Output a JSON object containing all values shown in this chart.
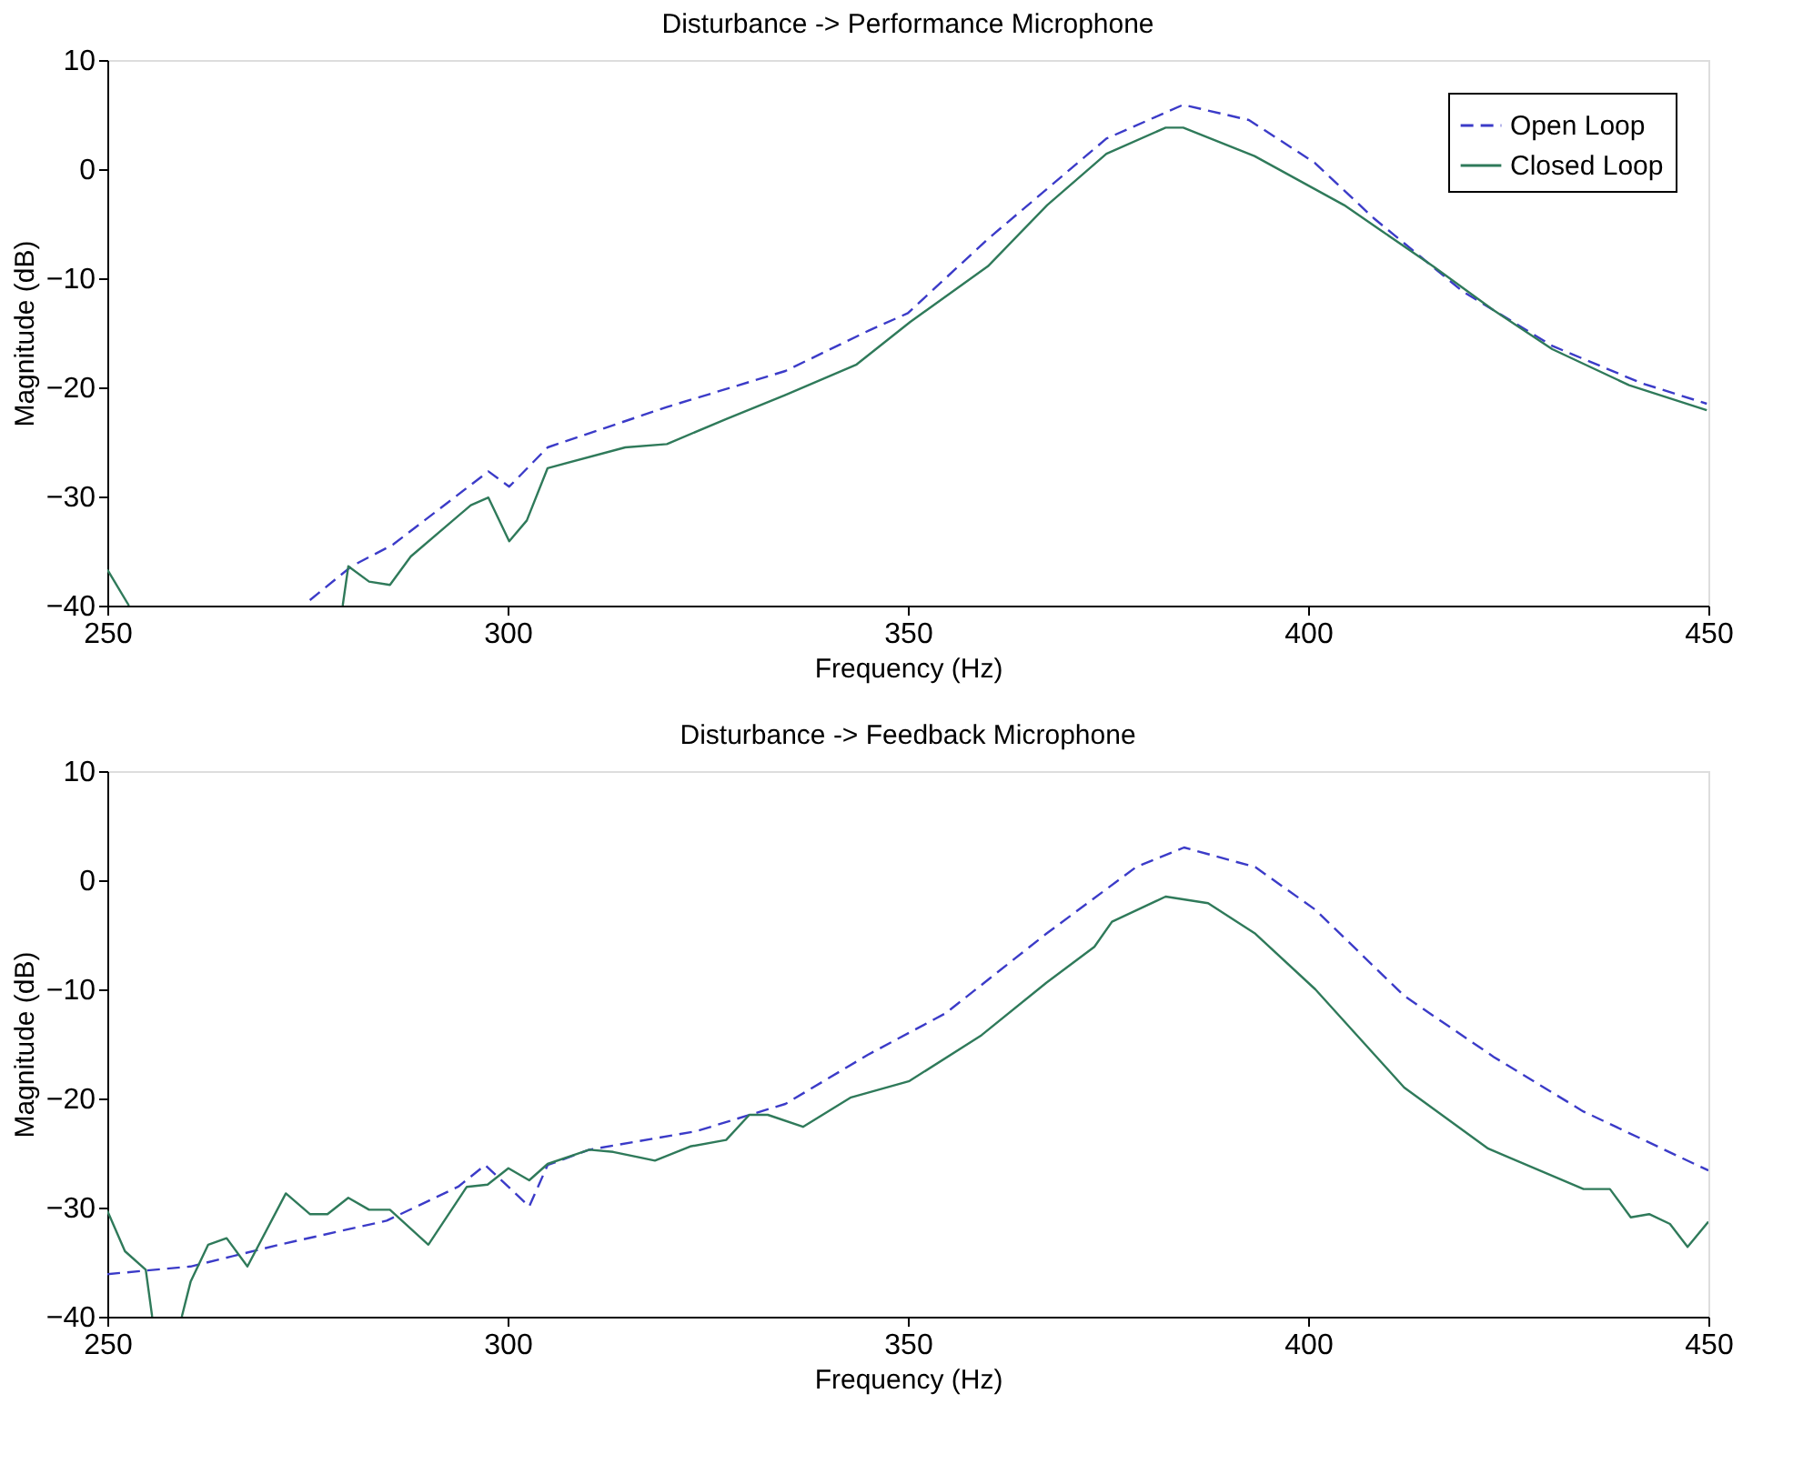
{
  "chart_data": [
    {
      "type": "line",
      "title": "Disturbance -> Performance Microphone",
      "xlabel": "Frequency (Hz)",
      "ylabel": "Magnitude (dB)",
      "xlim": [
        250,
        450
      ],
      "ylim": [
        -40,
        10
      ],
      "xticks": [
        250,
        300,
        350,
        400,
        450
      ],
      "yticks": [
        -40,
        -30,
        -20,
        -10,
        0,
        10
      ],
      "grid": false,
      "legend": "top right",
      "series": [
        {
          "name": "Open Loop",
          "color": "#3b3bc8",
          "line_style": "dashed",
          "x": [
            275.3,
            280.5,
            285.7,
            297.6,
            300.2,
            305,
            319.9,
            334.7,
            345.1,
            350,
            360,
            374.8,
            384.4,
            392.6,
            400.8,
            408.2,
            419.3,
            430.5,
            441.6,
            449.8
          ],
          "values": [
            -39.5,
            -36.4,
            -34.4,
            -27.7,
            -29.1,
            -25.5,
            -21.8,
            -18.5,
            -14.8,
            -13.2,
            -6.4,
            2.8,
            5.9,
            4.5,
            0.6,
            -4.5,
            -11.2,
            -16.2,
            -19.6,
            -21.5
          ]
        },
        {
          "name": "Closed Loop",
          "color": "#2f7a5a",
          "line_style": "solid",
          "x": [
            250,
            252.7,
            266,
            279.4,
            280.1,
            282.7,
            285.3,
            287.9,
            295.4,
            297.6,
            300.2,
            302.4,
            305,
            314.7,
            319.9,
            327.3,
            334.7,
            343.6,
            350.3,
            360,
            367.4,
            374.8,
            382.2,
            384.4,
            393.3,
            404.5,
            415.6,
            423.1,
            430.5,
            440.1,
            449.8
          ],
          "values": [
            -36.7,
            -40,
            null,
            -40,
            -36.4,
            -37.8,
            -38.1,
            -35.5,
            -30.8,
            -30.1,
            -34.1,
            -32.2,
            -27.4,
            -25.5,
            -25.2,
            -22.9,
            -20.7,
            -17.9,
            -14.0,
            -8.9,
            -3.3,
            1.4,
            3.8,
            3.8,
            1.2,
            -3.3,
            -8.9,
            -12.9,
            -16.5,
            -19.8,
            -22.1
          ]
        }
      ]
    },
    {
      "type": "line",
      "title": "Disturbance -> Feedback Microphone",
      "xlabel": "Frequency (Hz)",
      "ylabel": "Magnitude (dB)",
      "xlim": [
        250,
        450
      ],
      "ylim": [
        -40,
        10
      ],
      "xticks": [
        250,
        300,
        350,
        400,
        450
      ],
      "yticks": [
        -40,
        -30,
        -20,
        -10,
        0,
        10
      ],
      "grid": false,
      "legend": "top right",
      "series": [
        {
          "name": "Open Loop",
          "color": "#3b3bc8",
          "line_style": "dashed",
          "x": [
            250,
            260.4,
            271.5,
            284.9,
            293.8,
            297.2,
            302.7,
            305,
            310.2,
            323.6,
            334.7,
            345,
            354.7,
            367.3,
            378.5,
            384.5,
            393.4,
            400.9,
            412,
            423.2,
            434.4,
            450
          ],
          "values": [
            -36.1,
            -35.4,
            -33.4,
            -31.2,
            -28.1,
            -26.1,
            -29.9,
            -26.1,
            -24.7,
            -23.0,
            -20.5,
            -16.0,
            -12.2,
            -4.9,
            1.2,
            3.0,
            1.2,
            -2.7,
            -10.6,
            -16.2,
            -21.2,
            -26.6
          ]
        },
        {
          "name": "Closed Loop",
          "color": "#2f7a5a",
          "line_style": "solid",
          "x": [
            250,
            252.2,
            254.8,
            255.6,
            257.5,
            259.3,
            260.4,
            262.6,
            264.9,
            267.5,
            272.3,
            275.3,
            277.5,
            280.1,
            282.7,
            285.3,
            290.1,
            294.9,
            297.5,
            300.1,
            302.7,
            305,
            310.2,
            313.2,
            318.4,
            322.8,
            327.3,
            330.2,
            332.5,
            336.9,
            342.9,
            350.2,
            359.2,
            367.3,
            373.3,
            375.5,
            382.2,
            387.5,
            393.4,
            400.9,
            412,
            422.5,
            434.4,
            437.7,
            440.3,
            442.6,
            445.2,
            447.4,
            450
          ],
          "values": [
            -30.3,
            -34.0,
            -35.7,
            -40,
            null,
            -40,
            -36.8,
            -33.4,
            -32.8,
            -35.4,
            -28.7,
            -30.6,
            -30.6,
            -29.1,
            -30.2,
            -30.2,
            -33.4,
            -28.1,
            -27.9,
            -26.4,
            -27.5,
            -26.0,
            -24.7,
            -24.9,
            -25.7,
            -24.4,
            -23.8,
            -21.5,
            -21.5,
            -22.6,
            -19.9,
            -18.4,
            -14.2,
            -9.4,
            -6.1,
            -3.8,
            -1.5,
            -2.1,
            -4.9,
            -10.0,
            -19.0,
            -24.6,
            -28.3,
            -28.3,
            -30.9,
            -30.6,
            -31.5,
            -33.6,
            -31.3
          ]
        }
      ]
    }
  ]
}
